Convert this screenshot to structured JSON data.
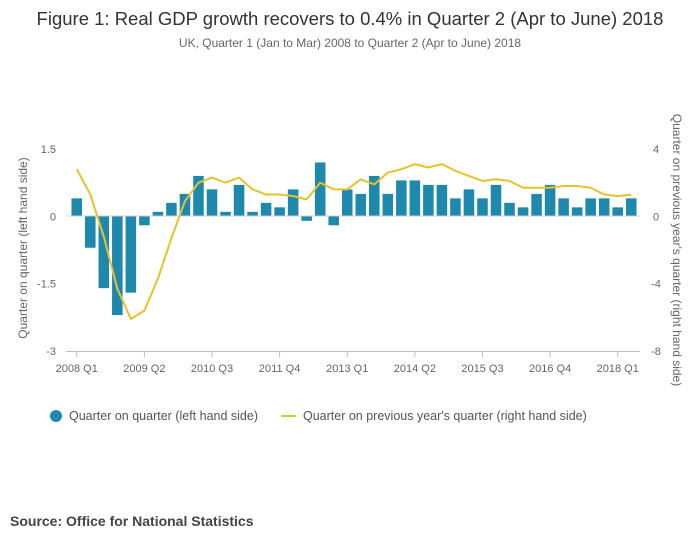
{
  "chart_data": {
    "type": "bar+line",
    "title": "Figure 1: Real GDP growth recovers to 0.4% in Quarter 2 (Apr to June) 2018",
    "subtitle": "UK, Quarter 1 (Jan to Mar) 2008 to Quarter 2 (Apr to June) 2018",
    "ylabel_left": "Quarter on quarter (left hand side)",
    "ylabel_right": "Quarter on previous year's quarter (right hand side)",
    "left_ticks": [
      "1.5",
      "0",
      "-1.5",
      "-3"
    ],
    "left_tick_values": [
      1.5,
      0,
      -1.5,
      -3
    ],
    "right_ticks": [
      "4",
      "0",
      "-4",
      "-8"
    ],
    "right_tick_values": [
      4,
      0,
      -4,
      -8
    ],
    "ylim_left": [
      -3,
      1.5
    ],
    "ylim_right": [
      -8,
      4
    ],
    "x_tick_labels": [
      "2008 Q1",
      "2009 Q2",
      "2010 Q3",
      "2011 Q4",
      "2013 Q1",
      "2014 Q2",
      "2015 Q3",
      "2016 Q4",
      "2018 Q1"
    ],
    "x_tick_indices": [
      0,
      5,
      10,
      15,
      20,
      25,
      30,
      35,
      40
    ],
    "series": [
      {
        "name": "Quarter on quarter (left hand side)",
        "kind": "bar",
        "color": "#1f88ad",
        "values": [
          0.4,
          -0.7,
          -1.6,
          -2.2,
          -1.7,
          -0.2,
          0.1,
          0.3,
          0.5,
          0.9,
          0.6,
          0.1,
          0.7,
          0.1,
          0.3,
          0.2,
          0.6,
          -0.1,
          1.2,
          -0.2,
          0.6,
          0.5,
          0.9,
          0.5,
          0.8,
          0.8,
          0.7,
          0.7,
          0.4,
          0.6,
          0.4,
          0.7,
          0.3,
          0.2,
          0.5,
          0.7,
          0.4,
          0.2,
          0.4,
          0.4,
          0.2,
          0.4
        ]
      },
      {
        "name": "Quarter on previous year's quarter (right hand side)",
        "kind": "line",
        "color": "#e8c22b",
        "values": [
          2.8,
          1.3,
          -1.2,
          -4.3,
          -6.1,
          -5.6,
          -3.7,
          -1.3,
          0.9,
          2.0,
          2.3,
          2.0,
          2.3,
          1.6,
          1.3,
          1.3,
          1.2,
          1.0,
          2.0,
          1.6,
          1.6,
          2.2,
          1.9,
          2.6,
          2.8,
          3.1,
          2.9,
          3.1,
          2.7,
          2.4,
          2.1,
          2.2,
          2.1,
          1.7,
          1.7,
          1.7,
          1.8,
          1.8,
          1.7,
          1.3,
          1.2,
          1.3
        ]
      }
    ],
    "legend_position": "bottom-left",
    "grid": false
  },
  "legend": {
    "bar_label": "Quarter on quarter (left hand side)",
    "line_label": "Quarter on previous year's quarter (right hand side)"
  },
  "source": "Source: Office for National Statistics"
}
